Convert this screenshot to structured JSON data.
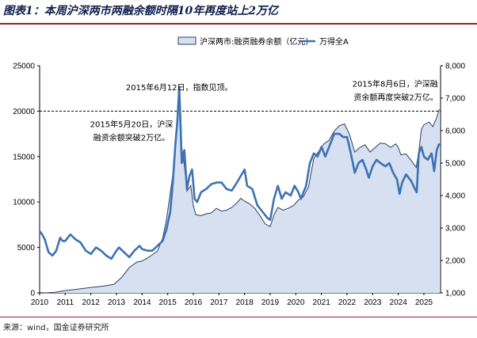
{
  "page": {
    "title": "图表1：本周沪深两市两融余额时隔10年再度站上2万亿",
    "source": "来源：wind，国金证券研究所"
  },
  "chart_data": {
    "type": "area+line",
    "title": "图表1：本周沪深两市两融余额时隔10年再度站上2万亿",
    "legend": {
      "placement": "top-center",
      "items": [
        "沪深两市:融资融券余额（亿元）",
        "万得全A"
      ]
    },
    "x_ticks": [
      "2010",
      "2011",
      "2012",
      "2013",
      "2014",
      "2015",
      "2016",
      "2017",
      "2018",
      "2019",
      "2020",
      "2021",
      "2022",
      "2023",
      "2024",
      "2025"
    ],
    "xlim": [
      2010.0,
      2025.65
    ],
    "left_axis": {
      "label": "",
      "ylim": [
        0,
        25000
      ],
      "ticks": [
        "0",
        "5000",
        "10000",
        "15000",
        "20000",
        "25000"
      ]
    },
    "right_axis": {
      "label": "",
      "ylim": [
        1000,
        8000
      ],
      "ticks": [
        "1,000",
        "2,000",
        "3,000",
        "4,000",
        "5,000",
        "6,000",
        "7,000",
        "8,000"
      ]
    },
    "reference_line": {
      "value": 20000,
      "axis": "left",
      "style": "dashed"
    },
    "annotations": [
      {
        "text_lines": [
          "2015年6月12日，指数见顶。"
        ],
        "x": 2015.45,
        "y_right": 7200
      },
      {
        "text_lines": [
          "2015年5月20日，沪深",
          "融资余额突破2万亿。"
        ],
        "x": 2015.38,
        "y_left": 20000
      },
      {
        "text_lines": [
          "2015年8月6日，沪深融",
          "资余额再度突破2万亿。"
        ],
        "x": 2025.55,
        "y_left": 20100
      }
    ],
    "series": [
      {
        "name": "沪深两市:融资融券余额（亿元）",
        "axis": "left",
        "style": "area",
        "points": [
          [
            2010.2,
            0
          ],
          [
            2010.6,
            60
          ],
          [
            2011.0,
            250
          ],
          [
            2011.5,
            420
          ],
          [
            2012.0,
            600
          ],
          [
            2012.5,
            750
          ],
          [
            2012.9,
            950
          ],
          [
            2013.2,
            1700
          ],
          [
            2013.5,
            2800
          ],
          [
            2013.8,
            3400
          ],
          [
            2014.0,
            3500
          ],
          [
            2014.3,
            4000
          ],
          [
            2014.6,
            4600
          ],
          [
            2014.8,
            6000
          ],
          [
            2014.95,
            8000
          ],
          [
            2015.1,
            11000
          ],
          [
            2015.2,
            13000
          ],
          [
            2015.3,
            16000
          ],
          [
            2015.38,
            20000
          ],
          [
            2015.45,
            22700
          ],
          [
            2015.5,
            20500
          ],
          [
            2015.55,
            16000
          ],
          [
            2015.65,
            14000
          ],
          [
            2015.75,
            11200
          ],
          [
            2015.9,
            11800
          ],
          [
            2016.0,
            9600
          ],
          [
            2016.1,
            8600
          ],
          [
            2016.3,
            8500
          ],
          [
            2016.5,
            8700
          ],
          [
            2016.7,
            8800
          ],
          [
            2016.9,
            9300
          ],
          [
            2017.1,
            9000
          ],
          [
            2017.3,
            9100
          ],
          [
            2017.5,
            9400
          ],
          [
            2017.7,
            9900
          ],
          [
            2017.85,
            10400
          ],
          [
            2018.0,
            10100
          ],
          [
            2018.2,
            9800
          ],
          [
            2018.4,
            9300
          ],
          [
            2018.6,
            8500
          ],
          [
            2018.8,
            7600
          ],
          [
            2019.0,
            7300
          ],
          [
            2019.15,
            8600
          ],
          [
            2019.3,
            9400
          ],
          [
            2019.5,
            9100
          ],
          [
            2019.7,
            9300
          ],
          [
            2019.9,
            9600
          ],
          [
            2020.1,
            10200
          ],
          [
            2020.3,
            10600
          ],
          [
            2020.5,
            11700
          ],
          [
            2020.7,
            14800
          ],
          [
            2020.9,
            15600
          ],
          [
            2021.1,
            16400
          ],
          [
            2021.3,
            16800
          ],
          [
            2021.5,
            17800
          ],
          [
            2021.7,
            18400
          ],
          [
            2021.9,
            18600
          ],
          [
            2022.1,
            17400
          ],
          [
            2022.3,
            15500
          ],
          [
            2022.5,
            16000
          ],
          [
            2022.7,
            16300
          ],
          [
            2022.9,
            15500
          ],
          [
            2023.1,
            16000
          ],
          [
            2023.3,
            16500
          ],
          [
            2023.5,
            16400
          ],
          [
            2023.7,
            16000
          ],
          [
            2023.9,
            16400
          ],
          [
            2024.0,
            16000
          ],
          [
            2024.1,
            15200
          ],
          [
            2024.3,
            15300
          ],
          [
            2024.5,
            14600
          ],
          [
            2024.7,
            13800
          ],
          [
            2024.8,
            15500
          ],
          [
            2024.9,
            18000
          ],
          [
            2025.0,
            18500
          ],
          [
            2025.2,
            18800
          ],
          [
            2025.35,
            18300
          ],
          [
            2025.5,
            19300
          ],
          [
            2025.6,
            20200
          ]
        ]
      },
      {
        "name": "万得全A",
        "axis": "right",
        "style": "line",
        "points": [
          [
            2010.0,
            2900
          ],
          [
            2010.1,
            2800
          ],
          [
            2010.2,
            2650
          ],
          [
            2010.35,
            2250
          ],
          [
            2010.5,
            2150
          ],
          [
            2010.65,
            2300
          ],
          [
            2010.8,
            2700
          ],
          [
            2010.9,
            2600
          ],
          [
            2011.0,
            2600
          ],
          [
            2011.2,
            2800
          ],
          [
            2011.4,
            2650
          ],
          [
            2011.6,
            2550
          ],
          [
            2011.8,
            2300
          ],
          [
            2012.0,
            2200
          ],
          [
            2012.2,
            2400
          ],
          [
            2012.4,
            2300
          ],
          [
            2012.6,
            2150
          ],
          [
            2012.8,
            2050
          ],
          [
            2013.0,
            2300
          ],
          [
            2013.1,
            2400
          ],
          [
            2013.3,
            2250
          ],
          [
            2013.5,
            2100
          ],
          [
            2013.7,
            2300
          ],
          [
            2013.9,
            2450
          ],
          [
            2014.0,
            2350
          ],
          [
            2014.2,
            2300
          ],
          [
            2014.4,
            2300
          ],
          [
            2014.6,
            2450
          ],
          [
            2014.8,
            2600
          ],
          [
            2014.95,
            2950
          ],
          [
            2015.1,
            3500
          ],
          [
            2015.2,
            4400
          ],
          [
            2015.3,
            5600
          ],
          [
            2015.38,
            6300
          ],
          [
            2015.45,
            7350
          ],
          [
            2015.5,
            6200
          ],
          [
            2015.55,
            5000
          ],
          [
            2015.65,
            5400
          ],
          [
            2015.75,
            4200
          ],
          [
            2015.85,
            4600
          ],
          [
            2015.95,
            4800
          ],
          [
            2016.05,
            3900
          ],
          [
            2016.15,
            3800
          ],
          [
            2016.3,
            4100
          ],
          [
            2016.5,
            4200
          ],
          [
            2016.7,
            4350
          ],
          [
            2016.9,
            4400
          ],
          [
            2017.1,
            4400
          ],
          [
            2017.3,
            4200
          ],
          [
            2017.5,
            4150
          ],
          [
            2017.7,
            4400
          ],
          [
            2017.85,
            4600
          ],
          [
            2018.0,
            4800
          ],
          [
            2018.1,
            4300
          ],
          [
            2018.3,
            4200
          ],
          [
            2018.5,
            3700
          ],
          [
            2018.7,
            3500
          ],
          [
            2018.9,
            3300
          ],
          [
            2019.0,
            3250
          ],
          [
            2019.15,
            3900
          ],
          [
            2019.3,
            4300
          ],
          [
            2019.45,
            3900
          ],
          [
            2019.6,
            4100
          ],
          [
            2019.8,
            4000
          ],
          [
            2019.95,
            4300
          ],
          [
            2020.1,
            4100
          ],
          [
            2020.2,
            3900
          ],
          [
            2020.4,
            4300
          ],
          [
            2020.55,
            5000
          ],
          [
            2020.7,
            5300
          ],
          [
            2020.85,
            5200
          ],
          [
            2021.0,
            5500
          ],
          [
            2021.15,
            5200
          ],
          [
            2021.3,
            5500
          ],
          [
            2021.5,
            5900
          ],
          [
            2021.7,
            5900
          ],
          [
            2021.85,
            5800
          ],
          [
            2022.0,
            5800
          ],
          [
            2022.15,
            5300
          ],
          [
            2022.3,
            4700
          ],
          [
            2022.45,
            5000
          ],
          [
            2022.6,
            5100
          ],
          [
            2022.75,
            4800
          ],
          [
            2022.85,
            4550
          ],
          [
            2023.0,
            4900
          ],
          [
            2023.15,
            5100
          ],
          [
            2023.3,
            5000
          ],
          [
            2023.5,
            4900
          ],
          [
            2023.65,
            5000
          ],
          [
            2023.8,
            4700
          ],
          [
            2023.95,
            4500
          ],
          [
            2024.05,
            4050
          ],
          [
            2024.15,
            4400
          ],
          [
            2024.3,
            4650
          ],
          [
            2024.5,
            4450
          ],
          [
            2024.65,
            4200
          ],
          [
            2024.72,
            4100
          ],
          [
            2024.8,
            5300
          ],
          [
            2024.9,
            5500
          ],
          [
            2025.0,
            5200
          ],
          [
            2025.15,
            5100
          ],
          [
            2025.3,
            5300
          ],
          [
            2025.4,
            4750
          ],
          [
            2025.5,
            5400
          ],
          [
            2025.6,
            5600
          ]
        ]
      }
    ]
  }
}
